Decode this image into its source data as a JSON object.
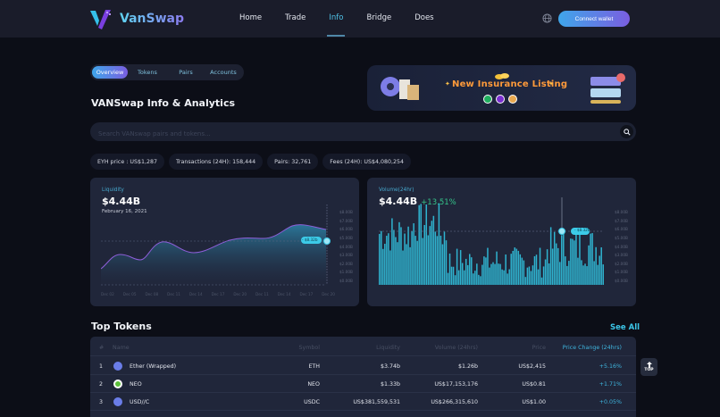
{
  "nav": {
    "brand": "VanSwap",
    "links": [
      {
        "label": "Home",
        "active": false
      },
      {
        "label": "Trade",
        "active": false
      },
      {
        "label": "Info",
        "active": true
      },
      {
        "label": "Bridge",
        "active": false
      },
      {
        "label": "Does",
        "active": false
      }
    ],
    "language_icon": "globe-icon",
    "connect_label": "Connect  wallet"
  },
  "tabs": [
    {
      "label": "Overview",
      "active": true
    },
    {
      "label": "Tokens",
      "active": false
    },
    {
      "label": "Pairs",
      "active": false
    },
    {
      "label": "Accounts",
      "active": false
    }
  ],
  "page_title": "VANSwap Info & Analytics",
  "banner": {
    "title": "New Insurance Listing"
  },
  "search": {
    "placeholder": "Search VANswap pairs and tokens...",
    "value": "",
    "icon": "search-icon"
  },
  "stats": [
    "EYH price : US$1,287",
    "Transactions (24H): 158,444",
    "Pairs: 32,761",
    "Fees (24H): US$4,080,254"
  ],
  "liquidity_card": {
    "label": "Liquidity",
    "value": "$4.44B",
    "date": "February 16, 2021",
    "tooltip": "- $8.32b",
    "y_ticks": [
      "$8.00B",
      "$7.00B",
      "$6.00B",
      "$5.00B",
      "$4.00B",
      "$3.00B",
      "$2.00B",
      "$1.00B",
      "$0.00B"
    ],
    "x_ticks": [
      "Dec 02",
      "Dec 05",
      "Dec 08",
      "Dec 11",
      "Dec 14",
      "Dec 17",
      "Dec 20",
      "Dec 11",
      "Dec 14",
      "Dec 17",
      "Dec 20"
    ]
  },
  "volume_card": {
    "label": "Volume(24hr)",
    "value": "$4.44B",
    "change": "+13.51%",
    "tooltip": "- $8.32b",
    "y_ticks": [
      "$8.00B",
      "$7.00B",
      "$6.00B",
      "$5.00B",
      "$4.00B",
      "$3.00B",
      "$2.00B",
      "$1.00B",
      "$0.00B"
    ]
  },
  "top_tokens": {
    "title": "Top Tokens",
    "see_all": "See All",
    "columns": [
      "#",
      "Name",
      "Symbol",
      "Liquidity",
      "Volume (24hrs)",
      "Price",
      "Price Change (24hrs)"
    ],
    "rows": [
      {
        "rank": "1",
        "name": "Ether (Wrapped)",
        "symbol": "ETH",
        "liquidity": "$3.74b",
        "volume": "$1.26b",
        "price": "US$2,415",
        "change": "+5.16%",
        "icon_color": "#6a7de8",
        "icon": "eth-icon"
      },
      {
        "rank": "2",
        "name": "NEO",
        "symbol": "NEO",
        "liquidity": "$1.33b",
        "volume": "US$17,153,176",
        "price": "US$0.81",
        "change": "+1.71%",
        "icon_color": "#7bd14a",
        "icon": "neo-icon"
      },
      {
        "rank": "3",
        "name": "USD//C",
        "symbol": "USDC",
        "liquidity": "US$381,559,531",
        "volume": "US$266,315,610",
        "price": "US$1.00",
        "change": "+0.05%",
        "icon_color": "#6a7de8",
        "icon": "usdc-icon"
      }
    ]
  },
  "top_button": "TOP",
  "colors": {
    "accent": "#3cc6e8",
    "positive": "#35c48a",
    "bar": "#2fb3cf",
    "background": "#0c0e17",
    "card": "#20263a"
  }
}
